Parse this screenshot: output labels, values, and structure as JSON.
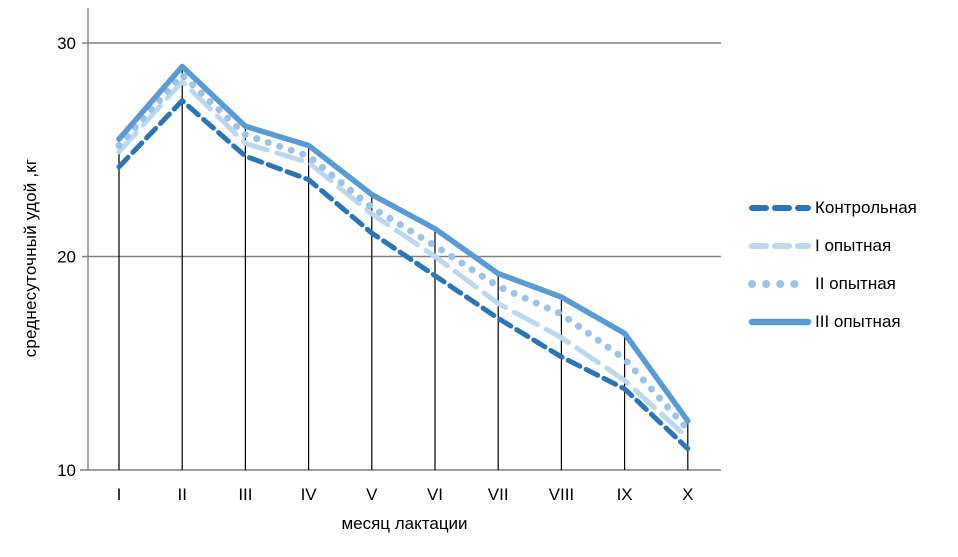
{
  "chart_data": {
    "type": "line",
    "title": "",
    "categories": [
      "I",
      "II",
      "III",
      "IV",
      "V",
      "VI",
      "VII",
      "VIII",
      "IX",
      "X"
    ],
    "series": [
      {
        "name": "Контрольная",
        "color": "#2E75B6",
        "style": "dashed",
        "values": [
          24.2,
          27.3,
          24.7,
          23.6,
          21.1,
          19.1,
          17.1,
          15.3,
          13.8,
          11.0
        ]
      },
      {
        "name": "I опытная",
        "color": "#BDD7EE",
        "style": "long-dash",
        "values": [
          24.9,
          28.2,
          25.3,
          24.4,
          22.0,
          20.0,
          17.8,
          16.2,
          14.2,
          11.5
        ]
      },
      {
        "name": "II опытная",
        "color": "#9DC3E6",
        "style": "dotted",
        "values": [
          25.2,
          28.5,
          25.7,
          24.7,
          22.3,
          20.5,
          18.6,
          17.3,
          15.2,
          11.9
        ]
      },
      {
        "name": "III опытная",
        "color": "#5B9BD5",
        "style": "solid",
        "values": [
          25.5,
          28.9,
          26.1,
          25.2,
          22.9,
          21.3,
          19.2,
          18.1,
          16.4,
          12.3
        ]
      }
    ],
    "xlabel": "месяц лактации",
    "ylabel": "среднесуточный удой ,кг",
    "ylim": [
      10,
      31
    ],
    "yticks": [
      10,
      20,
      30
    ],
    "grid": "horizontal",
    "drop_lines": true,
    "legend_position": "right",
    "axis_color": "#808080",
    "drop_line_color": "#000000",
    "tick_label_color": "#000000"
  }
}
